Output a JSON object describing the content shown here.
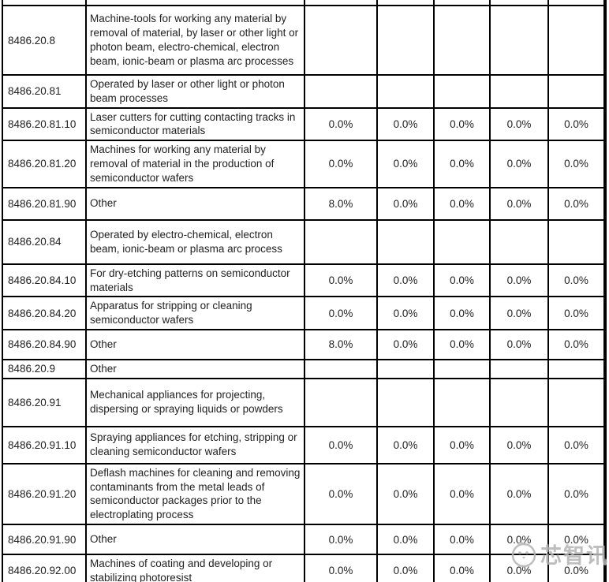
{
  "table": {
    "rows": [
      {
        "code": "8486.20.8",
        "description": "Machine-tools for working any material by removal of material, by laser or other light or photon beam, electro-chemical, electron beam, ionic-beam or plasma arc processes",
        "rates": [
          "",
          "",
          "",
          "",
          ""
        ]
      },
      {
        "code": "8486.20.81",
        "description": "Operated by laser or other light or photon beam processes",
        "rates": [
          "",
          "",
          "",
          "",
          ""
        ]
      },
      {
        "code": "8486.20.81.10",
        "description": "Laser cutters for cutting contacting tracks in semiconductor materials",
        "rates": [
          "0.0%",
          "0.0%",
          "0.0%",
          "0.0%",
          "0.0%"
        ]
      },
      {
        "code": "8486.20.81.20",
        "description": "Machines for working any material by removal of material in the production of semiconductor wafers",
        "rates": [
          "0.0%",
          "0.0%",
          "0.0%",
          "0.0%",
          "0.0%"
        ]
      },
      {
        "code": "8486.20.81.90",
        "description": "Other",
        "rates": [
          "8.0%",
          "0.0%",
          "0.0%",
          "0.0%",
          "0.0%"
        ]
      },
      {
        "code": "8486.20.84",
        "description": "Operated by electro-chemical, electron beam, ionic-beam or plasma arc process",
        "rates": [
          "",
          "",
          "",
          "",
          ""
        ]
      },
      {
        "code": "8486.20.84.10",
        "description": "For dry-etching patterns on semiconductor materials",
        "rates": [
          "0.0%",
          "0.0%",
          "0.0%",
          "0.0%",
          "0.0%"
        ]
      },
      {
        "code": "8486.20.84.20",
        "description": "Apparatus for stripping or cleaning semiconductor wafers",
        "rates": [
          "0.0%",
          "0.0%",
          "0.0%",
          "0.0%",
          "0.0%"
        ]
      },
      {
        "code": "8486.20.84.90",
        "description": "Other",
        "rates": [
          "8.0%",
          "0.0%",
          "0.0%",
          "0.0%",
          "0.0%"
        ]
      },
      {
        "code": "8486.20.9",
        "description": "Other",
        "rates": [
          "",
          "",
          "",
          "",
          ""
        ]
      },
      {
        "code": "8486.20.91",
        "description": "Mechanical appliances for projecting, dispersing or spraying liquids or powders",
        "rates": [
          "",
          "",
          "",
          "",
          ""
        ]
      },
      {
        "code": "8486.20.91.10",
        "description": "Spraying appliances for etching, stripping or cleaning semiconductor wafers",
        "rates": [
          "0.0%",
          "0.0%",
          "0.0%",
          "0.0%",
          "0.0%"
        ]
      },
      {
        "code": "8486.20.91.20",
        "description": "Deflash machines for cleaning and removing contaminants from the metal leads of semiconductor packages prior to the electroplating process",
        "rates": [
          "0.0%",
          "0.0%",
          "0.0%",
          "0.0%",
          "0.0%"
        ]
      },
      {
        "code": "8486.20.91.90",
        "description": "Other",
        "rates": [
          "0.0%",
          "0.0%",
          "0.0%",
          "0.0%",
          "0.0%"
        ]
      },
      {
        "code": "8486.20.92.00",
        "description": "Machines of coating and developing or stabilizing photoresist",
        "rates": [
          "0.0%",
          "0.0%",
          "0.0%",
          "0.0%",
          "0.0%"
        ]
      }
    ]
  },
  "watermark": {
    "text": "芯智讯"
  },
  "colors": {
    "border": "#000000",
    "text": "#222222",
    "watermark": "#b6b6b6",
    "background": "#ffffff"
  }
}
